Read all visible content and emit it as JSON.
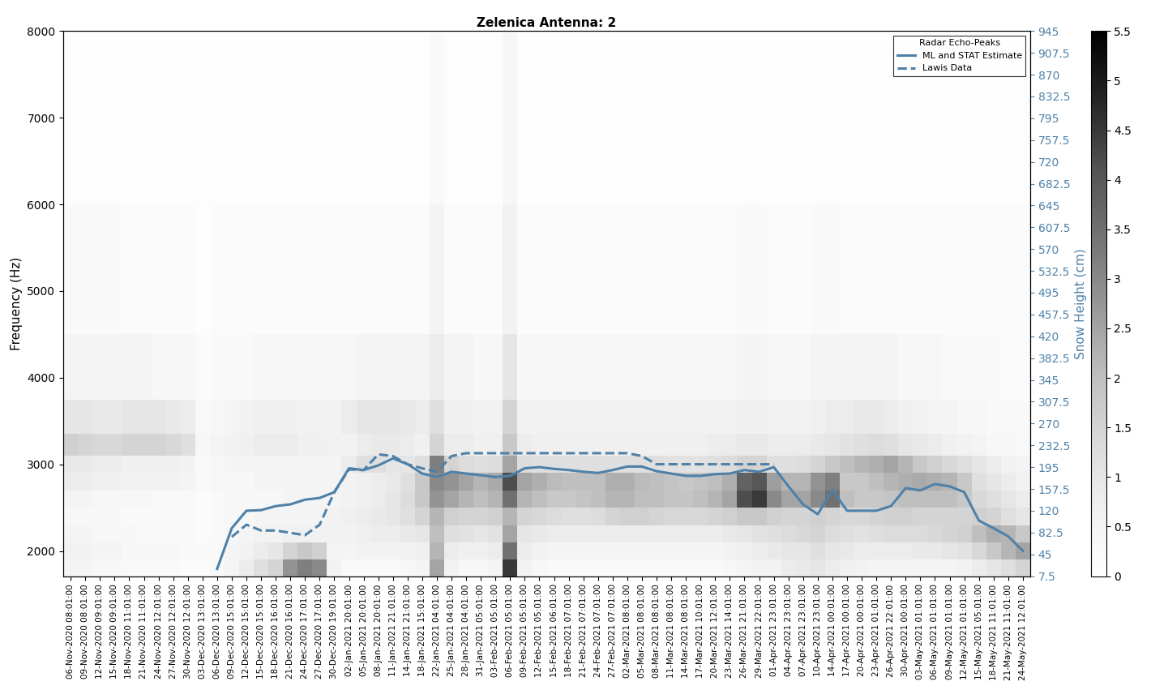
{
  "chart_data": {
    "type": "heatmap_line",
    "title": "Zelenica Antenna: 2",
    "y_label": "Frequency (Hz)",
    "y2_label": "Snow Height (cm)",
    "legend_title": "Radar Echo-Peaks",
    "legend": "upper right",
    "categories": [
      "06-Nov-2020 08:01:00",
      "09-Nov-2020 08:01:00",
      "12-Nov-2020 09:01:00",
      "15-Nov-2020 09:01:00",
      "18-Nov-2020 11:01:00",
      "21-Nov-2020 11:01:00",
      "24-Nov-2020 12:01:00",
      "27-Nov-2020 12:01:00",
      "30-Nov-2020 12:01:00",
      "03-Dec-2020 13:01:00",
      "06-Dec-2020 13:01:00",
      "09-Dec-2020 15:01:00",
      "12-Dec-2020 15:01:00",
      "15-Dec-2020 15:01:00",
      "18-Dec-2020 16:01:00",
      "21-Dec-2020 16:01:00",
      "24-Dec-2020 17:01:00",
      "27-Dec-2020 17:01:00",
      "30-Dec-2020 19:01:00",
      "02-Jan-2021 20:01:00",
      "05-Jan-2021 20:01:00",
      "08-Jan-2021 20:01:00",
      "11-Jan-2021 21:01:00",
      "14-Jan-2021 21:01:00",
      "18-Jan-2021 15:01:00",
      "22-Jan-2021 04:01:00",
      "25-Jan-2021 04:01:00",
      "28-Jan-2021 04:01:00",
      "31-Jan-2021 05:01:00",
      "03-Feb-2021 05:01:00",
      "06-Feb-2021 05:01:00",
      "09-Feb-2021 05:01:00",
      "12-Feb-2021 05:01:00",
      "15-Feb-2021 06:01:00",
      "18-Feb-2021 07:01:00",
      "21-Feb-2021 07:01:00",
      "24-Feb-2021 07:01:00",
      "27-Feb-2021 07:01:00",
      "02-Mar-2021 08:01:00",
      "05-Mar-2021 08:01:00",
      "08-Mar-2021 08:01:00",
      "11-Mar-2021 08:01:00",
      "14-Mar-2021 08:01:00",
      "17-Mar-2021 10:01:00",
      "20-Mar-2021 12:01:00",
      "23-Mar-2021 14:01:00",
      "26-Mar-2021 21:01:00",
      "29-Mar-2021 22:01:00",
      "01-Apr-2021 23:01:00",
      "04-Apr-2021 23:01:00",
      "07-Apr-2021 23:01:00",
      "10-Apr-2021 23:01:00",
      "14-Apr-2021 00:01:00",
      "17-Apr-2021 00:01:00",
      "20-Apr-2021 00:01:00",
      "23-Apr-2021 01:01:00",
      "26-Apr-2021 22:01:00",
      "30-Apr-2021 00:01:00",
      "03-May-2021 01:01:00",
      "06-May-2021 01:01:00",
      "09-May-2021 01:01:00",
      "12-May-2021 01:01:00",
      "15-May-2021 05:01:00",
      "18-May-2021 11:01:00",
      "21-May-2021 11:01:00",
      "24-May-2021 12:01:00"
    ],
    "ylim": [
      1710,
      8000
    ],
    "yticks": [
      2000,
      3000,
      4000,
      5000,
      6000,
      7000,
      8000
    ],
    "y2lim": [
      7.5,
      945
    ],
    "y2ticks": [
      7.5,
      45,
      82.5,
      120,
      157.5,
      195,
      232.5,
      270,
      307.5,
      345,
      382.5,
      420,
      457.5,
      495,
      532.5,
      570,
      607.5,
      645,
      682.5,
      720,
      757.5,
      795,
      832.5,
      870,
      907.5,
      945
    ],
    "colorbar_range": [
      0,
      5.5
    ],
    "colorbar_ticks": [
      0,
      0.5,
      1,
      1.5,
      2,
      2.5,
      3,
      3.5,
      4,
      4.5,
      5,
      5.5
    ],
    "heatmap_y": [
      1800,
      2000,
      2200,
      2400,
      2600,
      2800,
      3000,
      3200,
      3500,
      4000,
      5000,
      7000
    ],
    "heatmap_cells": [
      [
        0.5,
        0.5,
        0.4,
        0.4,
        0.3,
        0.3,
        0.3,
        0.3,
        0.2,
        0.2,
        0.3,
        0.5,
        0.8,
        1.2,
        1.5,
        2.8,
        3.2,
        3,
        0.6,
        0.3,
        0.3,
        0.3,
        0.3,
        0.4,
        0.5,
        2.5,
        0.6,
        0.4,
        0.4,
        0.5,
        4.5,
        0.6,
        0.4,
        0.3,
        0.3,
        0.3,
        0.3,
        0.3,
        0.3,
        0.3,
        0.3,
        0.3,
        0.3,
        0.3,
        0.3,
        0.4,
        0.5,
        0.6,
        0.6,
        0.8,
        0.9,
        1,
        0.8,
        0.7,
        0.6,
        0.5,
        0.5,
        0.5,
        0.5,
        0.5,
        0.5,
        0.6,
        0.8,
        1,
        1.2,
        1.5
      ],
      [
        0.6,
        0.6,
        0.5,
        0.5,
        0.4,
        0.4,
        0.4,
        0.4,
        0.3,
        0.3,
        0.3,
        0.5,
        0.6,
        0.8,
        1,
        1.5,
        1.8,
        1.6,
        0.5,
        0.5,
        0.6,
        0.6,
        0.6,
        0.6,
        0.7,
        2.2,
        0.8,
        0.7,
        0.7,
        0.8,
        3.5,
        0.8,
        0.6,
        0.5,
        0.5,
        0.5,
        0.5,
        0.5,
        0.5,
        0.5,
        0.5,
        0.5,
        0.5,
        0.5,
        0.5,
        0.6,
        0.7,
        0.8,
        0.9,
        1,
        1,
        1.2,
        1,
        0.9,
        0.8,
        0.8,
        0.8,
        0.8,
        0.9,
        0.9,
        1,
        1.1,
        1.4,
        1.8,
        2.2,
        2.5
      ],
      [
        0.5,
        0.5,
        0.4,
        0.4,
        0.4,
        0.3,
        0.3,
        0.3,
        0.3,
        0.2,
        0.3,
        0.4,
        0.5,
        0.6,
        0.6,
        0.7,
        0.7,
        0.6,
        0.6,
        0.6,
        0.7,
        0.8,
        0.8,
        0.9,
        1,
        2,
        1.2,
        1.1,
        1,
        1.1,
        2.5,
        1,
        0.9,
        0.8,
        0.8,
        0.8,
        0.8,
        0.8,
        0.8,
        0.8,
        0.8,
        0.8,
        0.8,
        0.8,
        0.8,
        0.9,
        1,
        1.1,
        1.2,
        1.3,
        1.4,
        1.5,
        1.3,
        1.2,
        1.1,
        1.2,
        1.3,
        1.3,
        1.3,
        1.4,
        1.5,
        1.6,
        2,
        2.3,
        2.2,
        1.8
      ],
      [
        0.4,
        0.4,
        0.4,
        0.4,
        0.3,
        0.3,
        0.3,
        0.3,
        0.3,
        0.2,
        0.3,
        0.4,
        0.4,
        0.5,
        0.5,
        0.5,
        0.5,
        0.5,
        0.6,
        0.7,
        0.8,
        0.9,
        1,
        1.2,
        1.5,
        2.2,
        1.6,
        1.5,
        1.5,
        1.6,
        2.2,
        1.5,
        1.4,
        1.3,
        1.2,
        1.2,
        1.3,
        1.5,
        1.6,
        1.6,
        1.5,
        1.4,
        1.4,
        1.4,
        1.5,
        1.6,
        1.8,
        1.8,
        1.6,
        1.5,
        1.5,
        1.6,
        1.5,
        1.4,
        1.4,
        1.5,
        1.6,
        1.6,
        1.5,
        1.5,
        1.5,
        1.5,
        1.6,
        1.5,
        1.2,
        1
      ],
      [
        0.5,
        0.5,
        0.4,
        0.4,
        0.4,
        0.4,
        0.3,
        0.3,
        0.3,
        0.2,
        0.3,
        0.4,
        0.4,
        0.4,
        0.4,
        0.5,
        0.5,
        0.5,
        0.5,
        0.6,
        0.7,
        0.8,
        1,
        1.3,
        1.8,
        2.8,
        2.5,
        2.2,
        2,
        2.2,
        3.5,
        2.2,
        2,
        1.8,
        1.8,
        1.9,
        2,
        2.2,
        2.2,
        2,
        2,
        1.9,
        1.9,
        2,
        2.2,
        2.5,
        4.2,
        4.5,
        3,
        2.5,
        2.5,
        3,
        3.5,
        2,
        1.8,
        1.8,
        1.9,
        2,
        2,
        2,
        2,
        1.8,
        1.4,
        1.2,
        1,
        0.8
      ],
      [
        0.8,
        0.8,
        0.7,
        0.7,
        0.6,
        0.6,
        0.6,
        0.6,
        0.5,
        0.3,
        0.4,
        0.4,
        0.4,
        0.5,
        0.5,
        0.5,
        0.5,
        0.5,
        0.5,
        0.6,
        0.7,
        0.8,
        0.9,
        1.2,
        1.8,
        3,
        2.8,
        2.5,
        2.2,
        2.4,
        4.2,
        2.5,
        2.3,
        2.1,
        2,
        2,
        2,
        2.3,
        2.3,
        2.1,
        2,
        1.9,
        1.8,
        1.9,
        2,
        2.3,
        3.8,
        4,
        2.6,
        2.2,
        2.2,
        2.8,
        3.2,
        1.8,
        1.8,
        2,
        2.2,
        2.3,
        2.4,
        2.3,
        2.2,
        1.8,
        1.2,
        1,
        0.8,
        0.6
      ],
      [
        0.9,
        0.9,
        0.8,
        0.8,
        0.7,
        0.7,
        0.7,
        0.7,
        0.6,
        0.3,
        0.4,
        0.5,
        0.5,
        0.5,
        0.5,
        0.5,
        0.5,
        0.5,
        0.5,
        0.8,
        1.2,
        1.2,
        1,
        1,
        1.2,
        3.2,
        1.5,
        1.3,
        1.2,
        1.3,
        2.5,
        1.3,
        1.2,
        1.2,
        1.2,
        1.2,
        1.2,
        1.2,
        1.2,
        1.2,
        1.2,
        1.1,
        1.1,
        1.1,
        1.2,
        1.3,
        1.5,
        1.5,
        1.2,
        1.2,
        1.3,
        1.5,
        1.8,
        2,
        2.2,
        2.3,
        2.5,
        2.2,
        1.8,
        1.6,
        1.4,
        1.2,
        1,
        0.8,
        0.6,
        0.5
      ],
      [
        1.6,
        1.5,
        1.4,
        1.4,
        1.5,
        1.5,
        1.5,
        1.4,
        1.2,
        0.4,
        0.5,
        0.6,
        0.7,
        0.8,
        0.8,
        0.8,
        0.7,
        0.7,
        0.6,
        0.6,
        0.8,
        0.9,
        0.9,
        0.8,
        0.7,
        1.5,
        0.8,
        0.8,
        0.7,
        0.7,
        1.8,
        0.8,
        0.7,
        0.7,
        0.7,
        0.7,
        0.7,
        0.7,
        0.7,
        0.7,
        0.7,
        0.7,
        0.7,
        0.7,
        0.8,
        0.8,
        0.9,
        0.9,
        0.8,
        0.8,
        0.8,
        0.9,
        1,
        1.1,
        1.2,
        1.3,
        1.2,
        1,
        0.9,
        0.8,
        0.7,
        0.6,
        0.5,
        0.4,
        0.4,
        0.3
      ],
      [
        1,
        1,
        0.9,
        0.9,
        1,
        1,
        1,
        0.9,
        0.8,
        0.3,
        0.4,
        0.5,
        0.6,
        0.7,
        0.7,
        0.7,
        0.6,
        0.6,
        0.6,
        0.8,
        1,
        1,
        1,
        0.9,
        0.8,
        1.2,
        0.7,
        0.7,
        0.6,
        0.6,
        1.5,
        0.6,
        0.6,
        0.6,
        0.6,
        0.6,
        0.6,
        0.6,
        0.6,
        0.6,
        0.6,
        0.6,
        0.6,
        0.6,
        0.6,
        0.6,
        0.7,
        0.7,
        0.6,
        0.6,
        0.6,
        0.7,
        0.8,
        0.8,
        0.9,
        0.9,
        0.8,
        0.7,
        0.6,
        0.5,
        0.5,
        0.4,
        0.4,
        0.3,
        0.3,
        0.3
      ],
      [
        0.5,
        0.5,
        0.5,
        0.5,
        0.5,
        0.5,
        0.4,
        0.4,
        0.4,
        0.2,
        0.3,
        0.3,
        0.3,
        0.4,
        0.4,
        0.4,
        0.4,
        0.4,
        0.4,
        0.4,
        0.5,
        0.5,
        0.5,
        0.5,
        0.5,
        0.8,
        0.5,
        0.5,
        0.4,
        0.4,
        1,
        0.4,
        0.4,
        0.4,
        0.4,
        0.4,
        0.4,
        0.4,
        0.4,
        0.4,
        0.4,
        0.4,
        0.4,
        0.4,
        0.4,
        0.4,
        0.5,
        0.5,
        0.4,
        0.4,
        0.4,
        0.5,
        0.5,
        0.5,
        0.5,
        0.5,
        0.5,
        0.4,
        0.4,
        0.4,
        0.3,
        0.3,
        0.3,
        0.3,
        0.2,
        0.2
      ],
      [
        0.3,
        0.3,
        0.3,
        0.3,
        0.2,
        0.2,
        0.2,
        0.2,
        0.2,
        0.1,
        0.2,
        0.2,
        0.2,
        0.2,
        0.2,
        0.2,
        0.2,
        0.2,
        0.2,
        0.2,
        0.2,
        0.2,
        0.2,
        0.2,
        0.2,
        0.5,
        0.2,
        0.2,
        0.2,
        0.2,
        0.6,
        0.2,
        0.2,
        0.2,
        0.2,
        0.2,
        0.2,
        0.2,
        0.2,
        0.2,
        0.2,
        0.2,
        0.2,
        0.2,
        0.2,
        0.2,
        0.3,
        0.3,
        0.2,
        0.2,
        0.2,
        0.3,
        0.3,
        0.2,
        0.2,
        0.2,
        0.2,
        0.2,
        0.2,
        0.2,
        0.2,
        0.2,
        0.2,
        0.2,
        0.2,
        0.2
      ],
      [
        0.1,
        0.1,
        0.1,
        0.1,
        0.1,
        0.1,
        0.1,
        0.1,
        0.1,
        0.1,
        0.1,
        0.1,
        0.1,
        0.1,
        0.1,
        0.1,
        0.1,
        0.1,
        0.1,
        0.1,
        0.1,
        0.1,
        0.1,
        0.1,
        0.1,
        0.3,
        0.1,
        0.1,
        0.1,
        0.1,
        0.4,
        0.1,
        0.1,
        0.1,
        0.1,
        0.1,
        0.1,
        0.1,
        0.1,
        0.1,
        0.1,
        0.1,
        0.1,
        0.1,
        0.1,
        0.1,
        0.1,
        0.1,
        0.1,
        0.1,
        0.1,
        0.1,
        0.1,
        0.1,
        0.1,
        0.1,
        0.1,
        0.1,
        0.1,
        0.1,
        0.1,
        0.1,
        0.1,
        0.1,
        0.1,
        0.1
      ]
    ],
    "series": [
      {
        "name": "ML and STAT Estimate",
        "color": "#4f81a8",
        "line_style": "solid",
        "axis": "y2",
        "values": [
          null,
          null,
          null,
          null,
          null,
          null,
          null,
          null,
          null,
          null,
          20,
          90,
          120,
          121,
          128,
          131,
          139,
          142,
          152,
          193,
          190,
          198,
          210,
          200,
          184,
          178,
          187,
          184,
          181,
          178,
          180,
          193,
          195,
          192,
          190,
          187,
          185,
          190,
          196,
          196,
          188,
          184,
          180,
          180,
          183,
          184,
          190,
          187,
          195,
          162,
          131,
          114,
          156,
          120,
          120,
          120,
          128,
          159,
          155,
          166,
          162,
          152,
          103,
          90,
          76,
          51
        ]
      },
      {
        "name": "Lawis Data",
        "color": "#4f81a8",
        "line_style": "dashed",
        "axis": "y2",
        "values": [
          null,
          null,
          null,
          null,
          null,
          null,
          null,
          null,
          null,
          null,
          null,
          75,
          96,
          86,
          86,
          82,
          78,
          96,
          152,
          191,
          190,
          217,
          214,
          200,
          193,
          187,
          214,
          219,
          219,
          219,
          219,
          219,
          219,
          219,
          219,
          219,
          219,
          219,
          219,
          214,
          200,
          200,
          200,
          200,
          200,
          200,
          200,
          200,
          200,
          null,
          null,
          null,
          null,
          null,
          null,
          null,
          null,
          null,
          null,
          null,
          null,
          null,
          null,
          null,
          null,
          null
        ]
      }
    ]
  }
}
